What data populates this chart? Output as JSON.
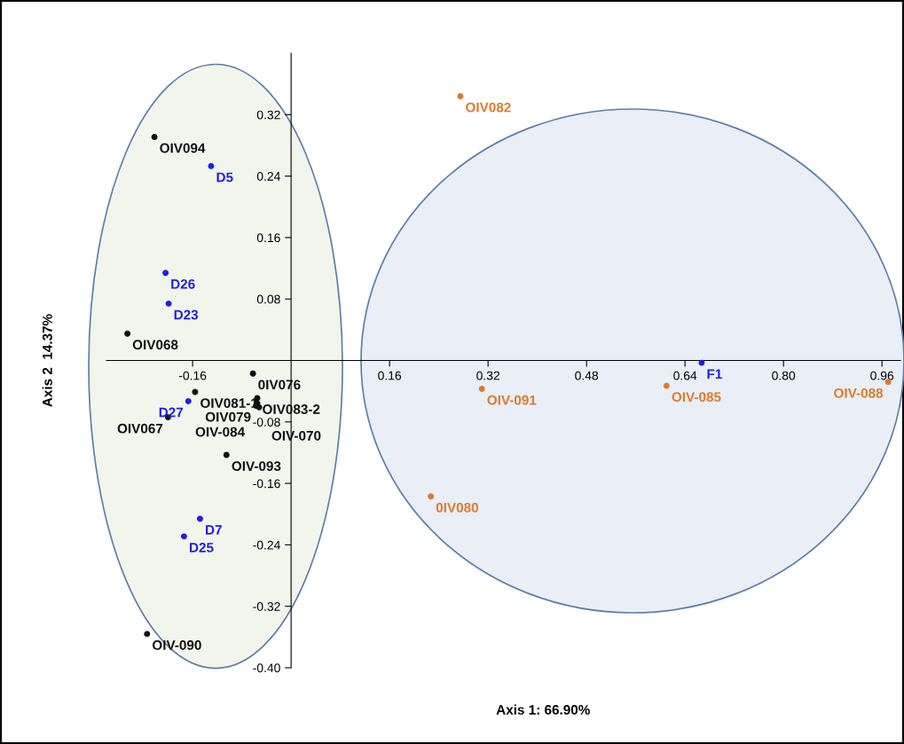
{
  "chart_data": {
    "type": "scatter",
    "xlabel": "Axis 1: 66.90%",
    "ylabel": "Axis 2  14.37%",
    "xlim": [
      -0.3,
      0.99
    ],
    "ylim": [
      -0.4,
      0.4
    ],
    "xticks": [
      -0.16,
      0.16,
      0.32,
      0.48,
      0.64,
      {
        "value": 0.8,
        "label": "0.80"
      },
      0.96
    ],
    "yticks": [
      {
        "value": -0.4,
        "label": "-0.40"
      },
      -0.32,
      -0.24,
      -0.16,
      -0.08,
      0.08,
      0.16,
      0.24,
      0.32
    ],
    "grid": false,
    "marker": "circle",
    "series": [
      {
        "color": "#111111",
        "x": [
          -0.222,
          -0.266,
          -0.062,
          -0.055,
          -0.156,
          -0.055,
          -0.052,
          -0.057,
          -0.2,
          -0.105,
          -0.234
        ],
        "values": [
          0.291,
          0.035,
          -0.017,
          -0.049,
          -0.041,
          -0.056,
          -0.061,
          -0.059,
          -0.074,
          -0.123,
          -0.356
        ],
        "value_labels": [
          "OIV094",
          "OIV068",
          "0IV076",
          "OIV083-2",
          "OIV081-1",
          "OIV-084",
          "OIV-070",
          "OIV079",
          "OIV067",
          "OIV-093",
          "OIV-090"
        ]
      },
      {
        "color": "#1f1fe0",
        "x": [
          -0.13,
          -0.204,
          -0.199,
          -0.167,
          -0.148,
          -0.174,
          0.667
        ],
        "values": [
          0.253,
          0.114,
          0.074,
          -0.053,
          -0.206,
          -0.229,
          -0.003
        ],
        "value_labels": [
          "D5",
          "D26",
          "D23",
          "D27",
          "D7",
          "D25",
          "F1"
        ]
      },
      {
        "color": "#e07a2a",
        "x": [
          0.275,
          0.31,
          0.61,
          0.97,
          0.227
        ],
        "values": [
          0.344,
          -0.037,
          -0.033,
          -0.028,
          -0.177
        ],
        "value_labels": [
          "OIV082",
          "OIV-091",
          "OIV-085",
          "OIV-088",
          "0IV080"
        ]
      }
    ]
  }
}
